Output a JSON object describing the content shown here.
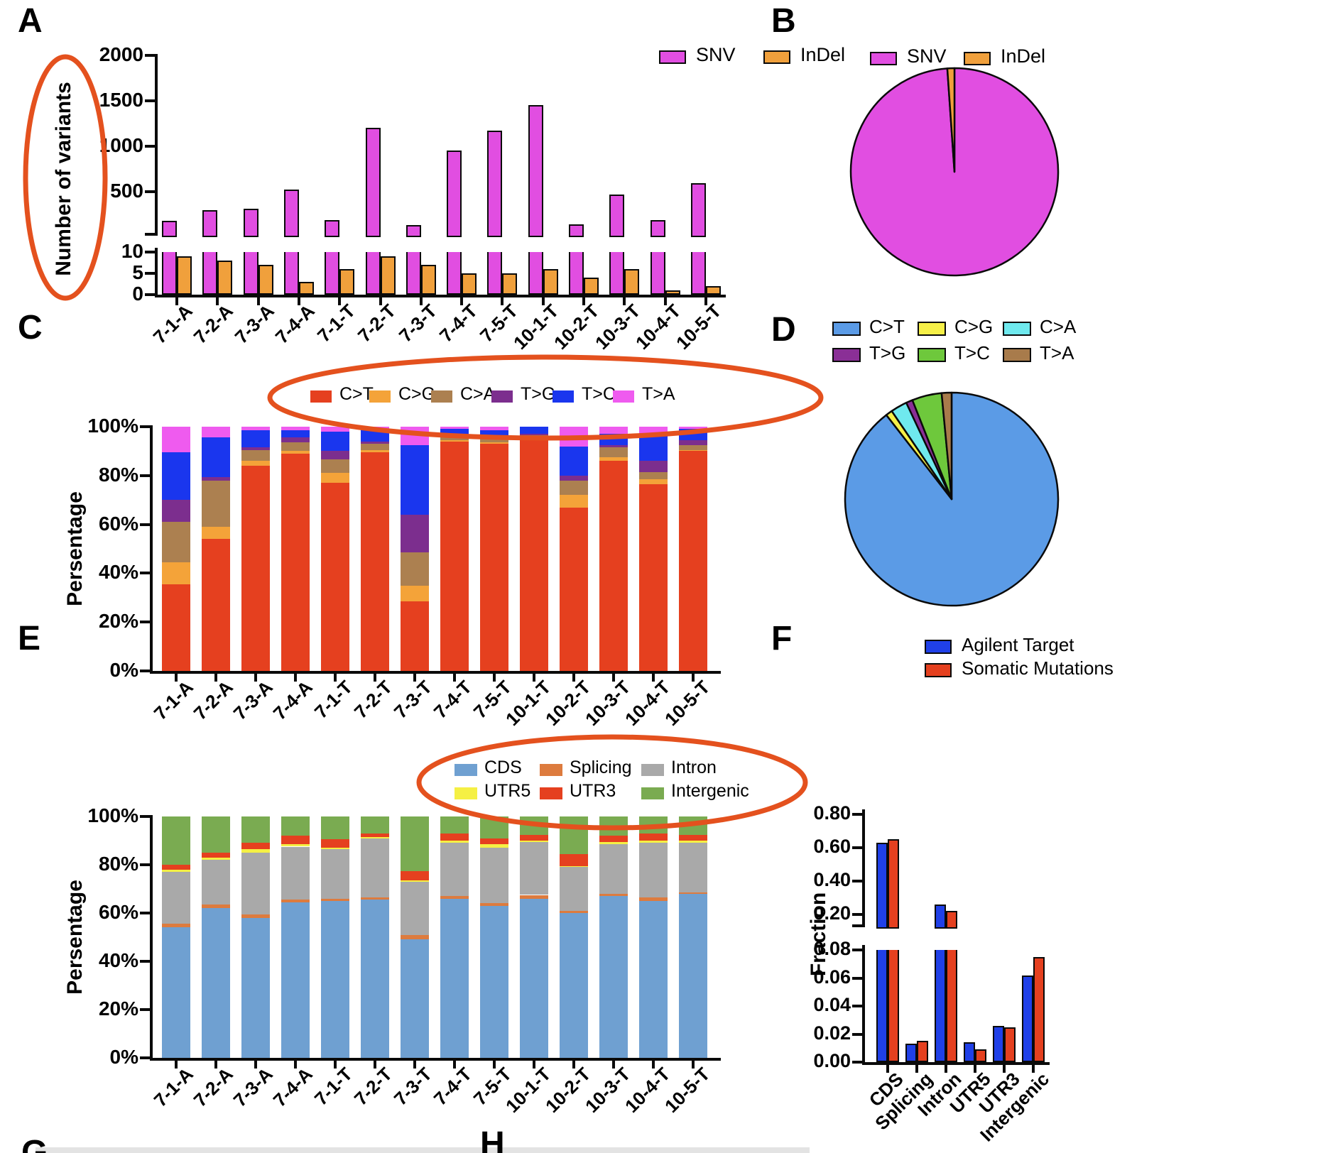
{
  "figure_labels": {
    "a": "A",
    "b": "B",
    "c": "C",
    "d": "D",
    "e": "E",
    "f": "F",
    "g_partial": "G",
    "h_partial": "H"
  },
  "samples": [
    "7-1-A",
    "7-2-A",
    "7-3-A",
    "7-4-A",
    "7-1-T",
    "7-2-T",
    "7-3-T",
    "7-4-T",
    "7-5-T",
    "10-1-T",
    "10-2-T",
    "10-3-T",
    "10-4-T",
    "10-5-T"
  ],
  "annotations": {
    "color": "#E4511E",
    "items": [
      "ellipse around panel A y-axis title",
      "ellipse around panel C legend",
      "ellipse around panel E legend"
    ]
  },
  "chart_data": [
    {
      "panel": "A",
      "type": "bar",
      "ylabel": "Number of variants",
      "axis_break": true,
      "upper_ticks": [
        500,
        1000,
        1500,
        2000
      ],
      "lower_ticks": [
        0,
        5,
        10
      ],
      "tick_labels": [
        "0",
        "5",
        "10",
        "500",
        "1000",
        "1500",
        "2000"
      ],
      "legend_position": "top-right",
      "categories": [
        "7-1-A",
        "7-2-A",
        "7-3-A",
        "7-4-A",
        "7-1-T",
        "7-2-T",
        "7-3-T",
        "7-4-T",
        "7-5-T",
        "10-1-T",
        "10-2-T",
        "10-3-T",
        "10-4-T",
        "10-5-T"
      ],
      "series": [
        {
          "name": "SNV",
          "color": "#E14EE1",
          "values": [
            180,
            300,
            310,
            520,
            190,
            1200,
            130,
            950,
            1170,
            1450,
            140,
            470,
            190,
            590
          ]
        },
        {
          "name": "InDel",
          "color": "#F0A03C",
          "values": [
            9,
            8,
            7,
            3,
            6,
            9,
            7,
            5,
            5,
            6,
            4,
            6,
            1,
            2
          ]
        }
      ]
    },
    {
      "panel": "B",
      "type": "pie",
      "legend_position": "top",
      "slices": [
        {
          "label": "SNV",
          "color": "#E14EE1",
          "percent": 98.9
        },
        {
          "label": "InDel",
          "color": "#F0A03C",
          "percent": 1.1
        }
      ]
    },
    {
      "panel": "C",
      "type": "stacked-bar",
      "ylabel": "Persentage",
      "yticks": [
        "0%",
        "20%",
        "40%",
        "60%",
        "80%",
        "100%"
      ],
      "legend_position": "top",
      "categories": [
        "7-1-A",
        "7-2-A",
        "7-3-A",
        "7-4-A",
        "7-1-T",
        "7-2-T",
        "7-3-T",
        "7-4-T",
        "7-5-T",
        "10-1-T",
        "10-2-T",
        "10-3-T",
        "10-4-T",
        "10-5-T"
      ],
      "series": [
        {
          "name": "C>T",
          "color": "#E5401F",
          "values": [
            35.5,
            54,
            84,
            89,
            77,
            89.5,
            28.5,
            94,
            93,
            95.5,
            67,
            86,
            76.5,
            90
          ]
        },
        {
          "name": "C>G",
          "color": "#F4A339",
          "values": [
            9,
            5,
            2,
            1,
            4,
            1,
            6.5,
            0.5,
            0.5,
            0.5,
            5,
            1.5,
            2,
            0.5
          ]
        },
        {
          "name": "C>A",
          "color": "#AC8050",
          "values": [
            16.5,
            19,
            4.5,
            3.5,
            5.5,
            2.5,
            13.5,
            1.5,
            1.5,
            0.5,
            6,
            4,
            3,
            2
          ]
        },
        {
          "name": "T>G",
          "color": "#7C2E8E",
          "values": [
            9,
            1.5,
            1,
            2,
            3.5,
            1,
            15.5,
            0.5,
            0.5,
            0.5,
            2,
            1,
            4.5,
            2
          ]
        },
        {
          "name": "T>C",
          "color": "#1A36EE",
          "values": [
            19.5,
            16,
            7,
            3,
            8,
            5,
            28.5,
            2.5,
            3,
            3,
            12,
            4.5,
            11,
            4.5
          ]
        },
        {
          "name": "T>A",
          "color": "#EF5BEF",
          "values": [
            10.5,
            4.5,
            1.5,
            1.5,
            2,
            1,
            7.5,
            1,
            1.5,
            0,
            8,
            3,
            3,
            1
          ]
        }
      ]
    },
    {
      "panel": "D",
      "type": "pie",
      "legend_position": "top",
      "slices": [
        {
          "label": "C>T",
          "color": "#5B9BE6",
          "percent": 89.5
        },
        {
          "label": "C>G",
          "color": "#F6F048",
          "percent": 1
        },
        {
          "label": "C>A",
          "color": "#6FE9EE",
          "percent": 2.5
        },
        {
          "label": "T>G",
          "color": "#8A2F96",
          "percent": 1
        },
        {
          "label": "T>C",
          "color": "#6EC83C",
          "percent": 4.5
        },
        {
          "label": "T>A",
          "color": "#A87B4B",
          "percent": 1.5
        }
      ]
    },
    {
      "panel": "E",
      "type": "stacked-bar",
      "ylabel": "Persentage",
      "yticks": [
        "0%",
        "20%",
        "40%",
        "60%",
        "80%",
        "100%"
      ],
      "legend_position": "top",
      "categories": [
        "7-1-A",
        "7-2-A",
        "7-3-A",
        "7-4-A",
        "7-1-T",
        "7-2-T",
        "7-3-T",
        "7-4-T",
        "7-5-T",
        "10-1-T",
        "10-2-T",
        "10-3-T",
        "10-4-T",
        "10-5-T"
      ],
      "series": [
        {
          "name": "CDS",
          "color": "#6FA0D1",
          "values": [
            54,
            62,
            58,
            64.5,
            65,
            65.5,
            49,
            66,
            63,
            66,
            60,
            67,
            65,
            68
          ]
        },
        {
          "name": "Splicing",
          "color": "#DD7B3E",
          "values": [
            1.5,
            1.5,
            1.5,
            1,
            1,
            1,
            2,
            1,
            1,
            1.5,
            1,
            1,
            1.5,
            0.5
          ]
        },
        {
          "name": "Intron",
          "color": "#A9A9A9",
          "values": [
            21.5,
            18.5,
            25.5,
            22,
            20.5,
            24.5,
            22,
            22,
            23,
            22,
            18,
            20.5,
            22.5,
            20.5
          ]
        },
        {
          "name": "UTR5",
          "color": "#F5F044",
          "values": [
            1,
            1,
            1.5,
            1,
            0.5,
            0.5,
            0.5,
            1,
            1.5,
            0.5,
            0.5,
            1,
            1,
            1
          ]
        },
        {
          "name": "UTR3",
          "color": "#E5401F",
          "values": [
            2,
            2,
            2.5,
            3.5,
            3.5,
            1.5,
            4,
            3,
            2.5,
            2.5,
            5,
            2.5,
            3,
            2.5
          ]
        },
        {
          "name": "Intergenic",
          "color": "#7AAB51",
          "values": [
            20,
            15,
            11,
            8,
            9.5,
            7,
            22.5,
            7,
            9,
            7.5,
            15.5,
            8,
            7,
            7.5
          ]
        }
      ]
    },
    {
      "panel": "F",
      "type": "bar",
      "ylabel": "Fraction",
      "axis_break": true,
      "upper_ticks": [
        0.2,
        0.4,
        0.6,
        0.8
      ],
      "lower_ticks": [
        0.0,
        0.02,
        0.04,
        0.06,
        0.08
      ],
      "tick_labels": [
        "0.00",
        "0.02",
        "0.04",
        "0.06",
        "0.08",
        "0.20",
        "0.40",
        "0.60",
        "0.80"
      ],
      "legend_position": "top-right",
      "categories": [
        "CDS",
        "Splicing",
        "Intron",
        "UTR5",
        "UTR3",
        "Intergenic"
      ],
      "series": [
        {
          "name": "Agilent Target",
          "color": "#2040E8",
          "values": [
            0.63,
            0.013,
            0.26,
            0.014,
            0.026,
            0.062
          ]
        },
        {
          "name": "Somatic Mutations",
          "color": "#E5401F",
          "values": [
            0.65,
            0.015,
            0.22,
            0.009,
            0.025,
            0.075
          ]
        }
      ]
    }
  ]
}
